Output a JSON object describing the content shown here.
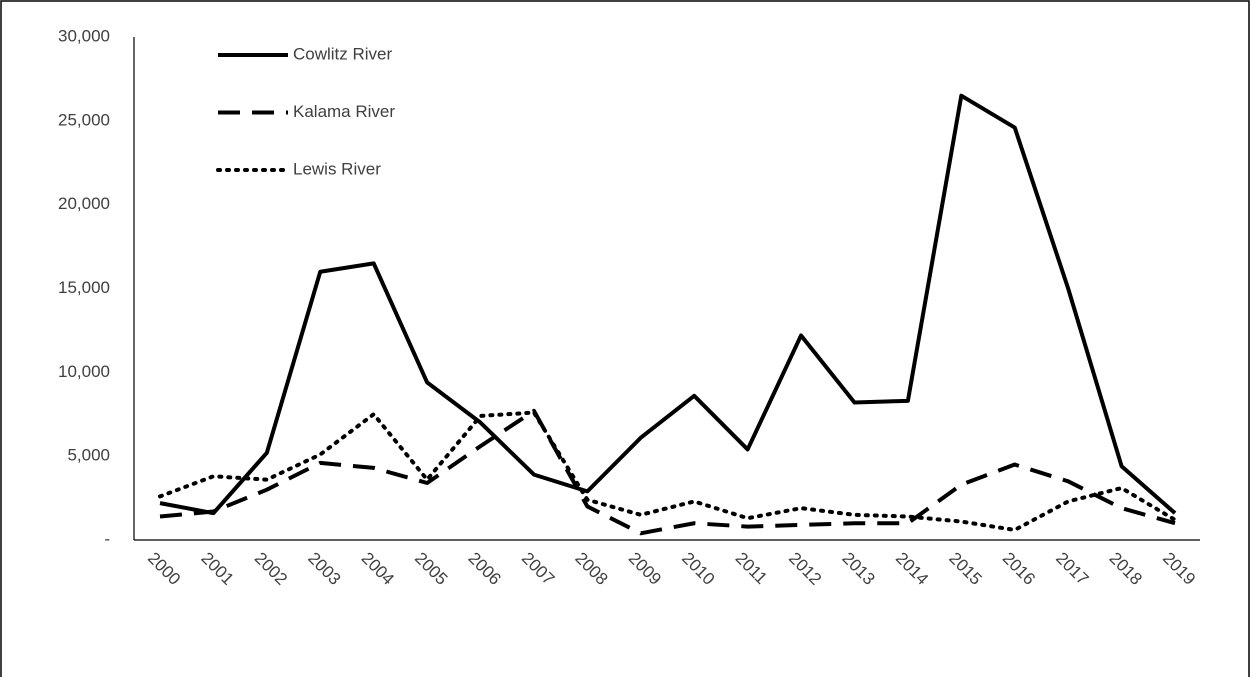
{
  "chart_data": {
    "type": "line",
    "categories": [
      "2000",
      "2001",
      "2002",
      "2003",
      "2004",
      "2005",
      "2006",
      "2007",
      "2008",
      "2009",
      "2010",
      "2011",
      "2012",
      "2013",
      "2014",
      "2015",
      "2016",
      "2017",
      "2018",
      "2019"
    ],
    "series": [
      {
        "name": "Cowlitz River",
        "color": "#000000",
        "dash": "solid",
        "values": [
          2200,
          1600,
          5200,
          16000,
          16500,
          9400,
          7000,
          3900,
          2900,
          6100,
          8600,
          5400,
          12200,
          8200,
          8300,
          26500,
          24600,
          15000,
          4400,
          1600
        ]
      },
      {
        "name": "Kalama River",
        "color": "#000000",
        "dash": "dashed",
        "values": [
          1400,
          1700,
          3000,
          4600,
          4300,
          3400,
          5600,
          7700,
          2000,
          400,
          1000,
          800,
          900,
          1000,
          1000,
          3300,
          4500,
          3500,
          1900,
          1000
        ]
      },
      {
        "name": "Lewis River",
        "color": "#000000",
        "dash": "dotted",
        "values": [
          2600,
          3800,
          3600,
          5100,
          7500,
          3600,
          7400,
          7600,
          2400,
          1500,
          2300,
          1300,
          1900,
          1500,
          1400,
          1100,
          600,
          2300,
          3100,
          1200
        ]
      }
    ],
    "ylim": [
      0,
      30000
    ],
    "yticks": [
      {
        "value": 0,
        "label": "-"
      },
      {
        "value": 5000,
        "label": "5,000"
      },
      {
        "value": 10000,
        "label": "10,000"
      },
      {
        "value": 15000,
        "label": "15,000"
      },
      {
        "value": 20000,
        "label": "20,000"
      },
      {
        "value": 25000,
        "label": "25,000"
      },
      {
        "value": 30000,
        "label": "30,000"
      }
    ],
    "legend": "upper-left"
  }
}
